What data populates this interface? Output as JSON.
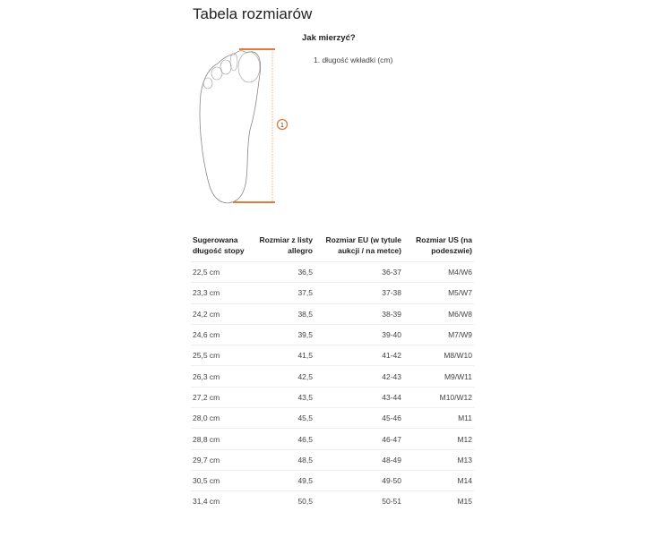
{
  "title": "Tabela rozmiarów",
  "how_to_measure": "Jak mierzyć?",
  "steps": [
    "1. długość wkładki (cm)"
  ],
  "marker_label": "1",
  "accent_color": "#e07b3c",
  "table": {
    "headers": [
      "Sugerowana długość stopy",
      "Rozmiar z listy allegro",
      "Rozmiar EU (w tytule aukcji / na metce)",
      "Rozmiar US (na podeszwie)"
    ],
    "rows": [
      [
        "22,5 cm",
        "36,5",
        "36-37",
        "M4/W6"
      ],
      [
        "23,3 cm",
        "37,5",
        "37-38",
        "M5/W7"
      ],
      [
        "24,2 cm",
        "38,5",
        "38-39",
        "M6/W8"
      ],
      [
        "24,6 cm",
        "39,5",
        "39-40",
        "M7/W9"
      ],
      [
        "25,5 cm",
        "41,5",
        "41-42",
        "M8/W10"
      ],
      [
        "26,3 cm",
        "42,5",
        "42-43",
        "M9/W11"
      ],
      [
        "27,2 cm",
        "43,5",
        "43-44",
        "M10/W12"
      ],
      [
        "28,0 cm",
        "45,5",
        "45-46",
        "M11"
      ],
      [
        "28,8 cm",
        "46,5",
        "46-47",
        "M12"
      ],
      [
        "29,7 cm",
        "48,5",
        "48-49",
        "M13"
      ],
      [
        "30,5 cm",
        "49,5",
        "49-50",
        "M14"
      ],
      [
        "31,4 cm",
        "50,5",
        "50-51",
        "M15"
      ]
    ]
  }
}
